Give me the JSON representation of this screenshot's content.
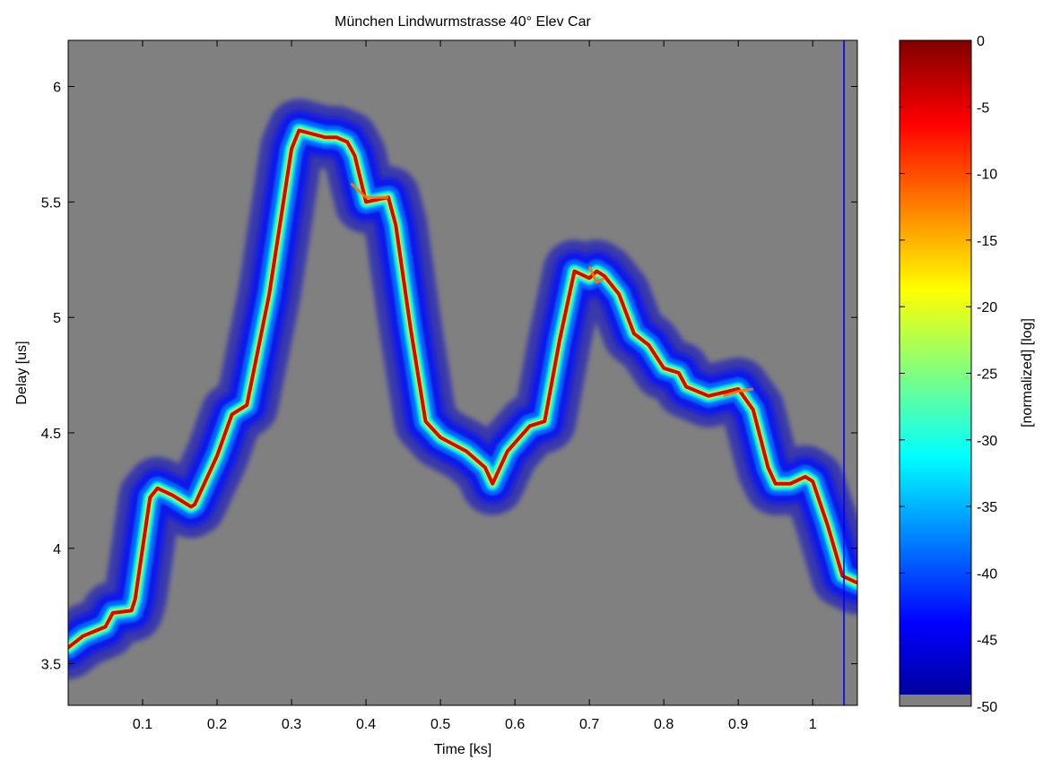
{
  "chart_data": {
    "type": "heatmap",
    "title": "München Lindwurmstrasse 40° Elev Car",
    "xlabel": "Time [ks]",
    "ylabel": "Delay [us]",
    "xlim": [
      0.0,
      1.06
    ],
    "ylim": [
      3.32,
      6.2
    ],
    "x_ticks": [
      0.1,
      0.2,
      0.3,
      0.4,
      0.5,
      0.6,
      0.7,
      0.8,
      0.9,
      1
    ],
    "x_tick_labels": [
      "0.1",
      "0.2",
      "0.3",
      "0.4",
      "0.5",
      "0.6",
      "0.7",
      "0.8",
      "0.9",
      "1"
    ],
    "y_ticks": [
      3.5,
      4,
      4.5,
      5,
      5.5,
      6
    ],
    "y_tick_labels": [
      "3.5",
      "4",
      "4.5",
      "5",
      "5.5",
      "6"
    ],
    "background_color": "#808080",
    "colorbar": {
      "label": "[normalized] [log]",
      "range": [
        -50,
        0
      ],
      "ticks": [
        0,
        -5,
        -10,
        -15,
        -20,
        -25,
        -30,
        -35,
        -40,
        -45,
        -50
      ],
      "tick_labels": [
        "0",
        "-5",
        "-10",
        "-15",
        "-20",
        "-25",
        "-30",
        "-35",
        "-40",
        "-45",
        "-50"
      ],
      "colormap": "jet",
      "floor_color": "#808080",
      "floor_value": -49.2
    },
    "main_path": {
      "description": "peak delay (red ridge) versus time",
      "x": [
        0.0,
        0.02,
        0.05,
        0.06,
        0.085,
        0.09,
        0.1,
        0.11,
        0.12,
        0.14,
        0.165,
        0.17,
        0.2,
        0.22,
        0.24,
        0.27,
        0.3,
        0.31,
        0.345,
        0.36,
        0.375,
        0.385,
        0.4,
        0.43,
        0.44,
        0.46,
        0.48,
        0.5,
        0.535,
        0.56,
        0.57,
        0.59,
        0.62,
        0.64,
        0.66,
        0.68,
        0.7,
        0.71,
        0.72,
        0.74,
        0.76,
        0.78,
        0.8,
        0.82,
        0.83,
        0.86,
        0.9,
        0.92,
        0.94,
        0.95,
        0.97,
        0.99,
        1.0,
        1.02,
        1.04,
        1.06
      ],
      "y": [
        3.57,
        3.62,
        3.66,
        3.72,
        3.73,
        3.78,
        4.0,
        4.22,
        4.26,
        4.23,
        4.18,
        4.19,
        4.4,
        4.58,
        4.62,
        5.1,
        5.73,
        5.81,
        5.78,
        5.78,
        5.76,
        5.7,
        5.5,
        5.52,
        5.4,
        4.95,
        4.55,
        4.48,
        4.42,
        4.35,
        4.28,
        4.42,
        4.53,
        4.55,
        4.9,
        5.2,
        5.17,
        5.2,
        5.18,
        5.1,
        4.93,
        4.88,
        4.78,
        4.76,
        4.7,
        4.66,
        4.69,
        4.6,
        4.35,
        4.28,
        4.28,
        4.31,
        4.29,
        4.1,
        3.88,
        3.85
      ]
    },
    "secondary_paths": [
      {
        "x": [
          0.88,
          0.9,
          0.92
        ],
        "y": [
          4.66,
          4.68,
          4.69
        ]
      },
      {
        "x": [
          0.38,
          0.4,
          0.43
        ],
        "y": [
          5.58,
          5.52,
          5.52
        ]
      },
      {
        "x": [
          0.7,
          0.71,
          0.72
        ],
        "y": [
          5.22,
          5.15,
          5.17
        ]
      }
    ],
    "vertical_streak": {
      "x": 1.042,
      "value": -44
    }
  }
}
